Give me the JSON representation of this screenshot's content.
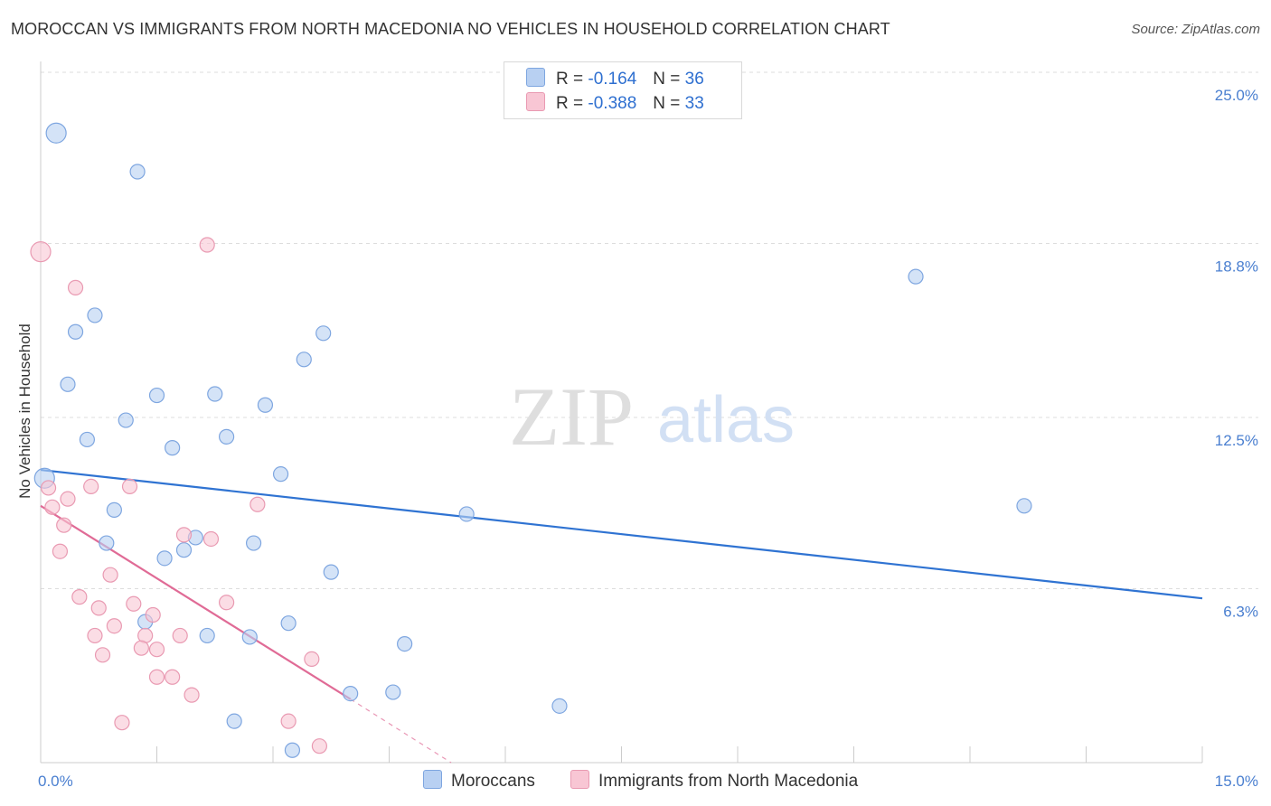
{
  "title": "MOROCCAN VS IMMIGRANTS FROM NORTH MACEDONIA NO VEHICLES IN HOUSEHOLD CORRELATION CHART",
  "source": "Source: ZipAtlas.com",
  "watermark": {
    "zip": "ZIP",
    "atlas": "atlas"
  },
  "colors": {
    "blue_fill": "#b8d0f2",
    "blue_stroke": "#7ea6e0",
    "blue_line": "#2f73d2",
    "pink_fill": "#f8c6d4",
    "pink_stroke": "#e99ab2",
    "pink_line": "#e06b96",
    "tick_text": "#4a7fd0",
    "grid": "#dddddd"
  },
  "legend_top": [
    {
      "series": "Moroccans",
      "r_label": "R =",
      "r_value": "-0.164",
      "n_label": "N =",
      "n_value": "36"
    },
    {
      "series": "Immigrants from North Macedonia",
      "r_label": "R =",
      "r_value": "-0.388",
      "n_label": "N =",
      "n_value": "33"
    }
  ],
  "legend_bottom": [
    "Moroccans",
    "Immigrants from North Macedonia"
  ],
  "chart_data": {
    "type": "scatter",
    "title": "MOROCCAN VS IMMIGRANTS FROM NORTH MACEDONIA NO VEHICLES IN HOUSEHOLD CORRELATION CHART",
    "xlabel": "",
    "ylabel": "No Vehicles in Household",
    "xlim": [
      0,
      15
    ],
    "ylim": [
      0,
      25
    ],
    "x_tick_labels": [
      "0.0%",
      "15.0%"
    ],
    "y_ticks": [
      {
        "value": 25.0,
        "label": "25.0%"
      },
      {
        "value": 18.8,
        "label": "18.8%"
      },
      {
        "value": 12.5,
        "label": "12.5%"
      },
      {
        "value": 6.3,
        "label": "6.3%"
      }
    ],
    "grid": true,
    "legend_position": "top-center",
    "series": [
      {
        "name": "Moroccans",
        "color": "blue",
        "r": -0.164,
        "n": 36,
        "trend": {
          "x": [
            0.0,
            15.0
          ],
          "y": [
            10.6,
            5.95
          ]
        },
        "points": [
          {
            "x": 0.2,
            "y": 22.8,
            "big": true
          },
          {
            "x": 1.25,
            "y": 21.4
          },
          {
            "x": 0.05,
            "y": 10.3,
            "big": true
          },
          {
            "x": 0.7,
            "y": 16.2
          },
          {
            "x": 0.45,
            "y": 15.6
          },
          {
            "x": 0.35,
            "y": 13.7
          },
          {
            "x": 0.6,
            "y": 11.7
          },
          {
            "x": 1.1,
            "y": 12.4
          },
          {
            "x": 1.5,
            "y": 13.3
          },
          {
            "x": 2.25,
            "y": 13.35
          },
          {
            "x": 2.9,
            "y": 12.95
          },
          {
            "x": 3.4,
            "y": 14.6
          },
          {
            "x": 3.65,
            "y": 15.55
          },
          {
            "x": 1.7,
            "y": 11.4
          },
          {
            "x": 2.4,
            "y": 11.8
          },
          {
            "x": 3.1,
            "y": 10.45
          },
          {
            "x": 0.95,
            "y": 9.15
          },
          {
            "x": 0.85,
            "y": 7.95
          },
          {
            "x": 1.6,
            "y": 7.4
          },
          {
            "x": 1.85,
            "y": 7.7
          },
          {
            "x": 2.0,
            "y": 8.15
          },
          {
            "x": 2.75,
            "y": 7.95
          },
          {
            "x": 3.75,
            "y": 6.9
          },
          {
            "x": 5.5,
            "y": 9.0
          },
          {
            "x": 1.35,
            "y": 5.1
          },
          {
            "x": 2.15,
            "y": 4.6
          },
          {
            "x": 2.7,
            "y": 4.55
          },
          {
            "x": 3.2,
            "y": 5.05
          },
          {
            "x": 4.7,
            "y": 4.3
          },
          {
            "x": 4.0,
            "y": 2.5
          },
          {
            "x": 4.55,
            "y": 2.55
          },
          {
            "x": 6.7,
            "y": 2.05
          },
          {
            "x": 2.5,
            "y": 1.5
          },
          {
            "x": 3.25,
            "y": 0.45
          },
          {
            "x": 11.3,
            "y": 17.6
          },
          {
            "x": 12.7,
            "y": 9.3
          }
        ]
      },
      {
        "name": "Immigrants from North Macedonia",
        "color": "pink",
        "r": -0.388,
        "n": 33,
        "trend": {
          "x": [
            0.0,
            4.0
          ],
          "y": [
            9.3,
            2.3
          ]
        },
        "trend_extension": {
          "x": [
            4.0,
            5.3
          ],
          "y": [
            2.3,
            0.0
          ]
        },
        "points": [
          {
            "x": 0.0,
            "y": 18.5,
            "big": true
          },
          {
            "x": 2.15,
            "y": 18.75
          },
          {
            "x": 0.45,
            "y": 17.2
          },
          {
            "x": 0.1,
            "y": 9.95
          },
          {
            "x": 0.65,
            "y": 10.0
          },
          {
            "x": 1.15,
            "y": 10.0
          },
          {
            "x": 0.15,
            "y": 9.25
          },
          {
            "x": 0.35,
            "y": 9.55
          },
          {
            "x": 0.3,
            "y": 8.6
          },
          {
            "x": 2.8,
            "y": 9.35
          },
          {
            "x": 1.85,
            "y": 8.25
          },
          {
            "x": 2.2,
            "y": 8.1
          },
          {
            "x": 0.25,
            "y": 7.65
          },
          {
            "x": 0.9,
            "y": 6.8
          },
          {
            "x": 0.5,
            "y": 6.0
          },
          {
            "x": 0.75,
            "y": 5.6
          },
          {
            "x": 1.2,
            "y": 5.75
          },
          {
            "x": 1.45,
            "y": 5.35
          },
          {
            "x": 2.4,
            "y": 5.8
          },
          {
            "x": 0.95,
            "y": 4.95
          },
          {
            "x": 0.7,
            "y": 4.6
          },
          {
            "x": 1.35,
            "y": 4.6
          },
          {
            "x": 1.8,
            "y": 4.6
          },
          {
            "x": 1.3,
            "y": 4.15
          },
          {
            "x": 1.5,
            "y": 4.1
          },
          {
            "x": 0.8,
            "y": 3.9
          },
          {
            "x": 3.5,
            "y": 3.75
          },
          {
            "x": 1.5,
            "y": 3.1
          },
          {
            "x": 1.7,
            "y": 3.1
          },
          {
            "x": 1.95,
            "y": 2.45
          },
          {
            "x": 1.05,
            "y": 1.45
          },
          {
            "x": 3.2,
            "y": 1.5
          },
          {
            "x": 3.6,
            "y": 0.6
          }
        ]
      }
    ]
  }
}
